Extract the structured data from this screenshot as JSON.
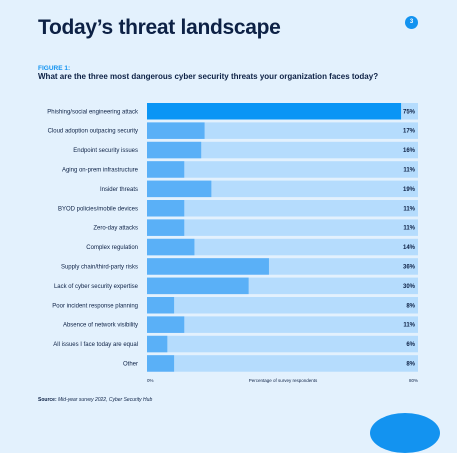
{
  "header": {
    "title": "Today’s threat landscape",
    "page_number": "3"
  },
  "figure": {
    "label": "FIGURE 1:",
    "question": "What are the three most dangerous cyber security threats your organization faces today?"
  },
  "source": {
    "prefix": "Source:",
    "text": "Mid-year survey 2022, Cyber Security Hub"
  },
  "colors": {
    "highlight_bar": "#0a95f5",
    "bar": "#5ab0f7",
    "track": "#b5dcfd",
    "background": "#e3f1fd",
    "text": "#0d2145"
  },
  "chart_data": {
    "type": "bar",
    "orientation": "horizontal",
    "categories": [
      "Phishing/social engineering attack",
      "Cloud adoption outpacing security",
      "Endpoint security issues",
      "Aging on-prem infrastructure",
      "Insider threats",
      "BYOD policies/mobile devices",
      "Zero-day attacks",
      "Complex regulation",
      "Supply chain/third-party risks",
      "Lack of cyber security expertise",
      "Poor incident response planning",
      "Absence of network visibility",
      "All issues I face today are equal",
      "Other"
    ],
    "values": [
      75,
      17,
      16,
      11,
      19,
      11,
      11,
      14,
      36,
      30,
      8,
      11,
      6,
      8
    ],
    "value_labels": [
      "75%",
      "17%",
      "16%",
      "11%",
      "19%",
      "11%",
      "11%",
      "14%",
      "36%",
      "30%",
      "8%",
      "11%",
      "6%",
      "8%"
    ],
    "xlim": [
      0,
      80
    ],
    "x_tick_labels": [
      "0%",
      "80%"
    ],
    "xlabel": "Percentage of survey respondents",
    "ylabel": "",
    "grid": false,
    "legend": "none",
    "highlighted_index": 0
  }
}
